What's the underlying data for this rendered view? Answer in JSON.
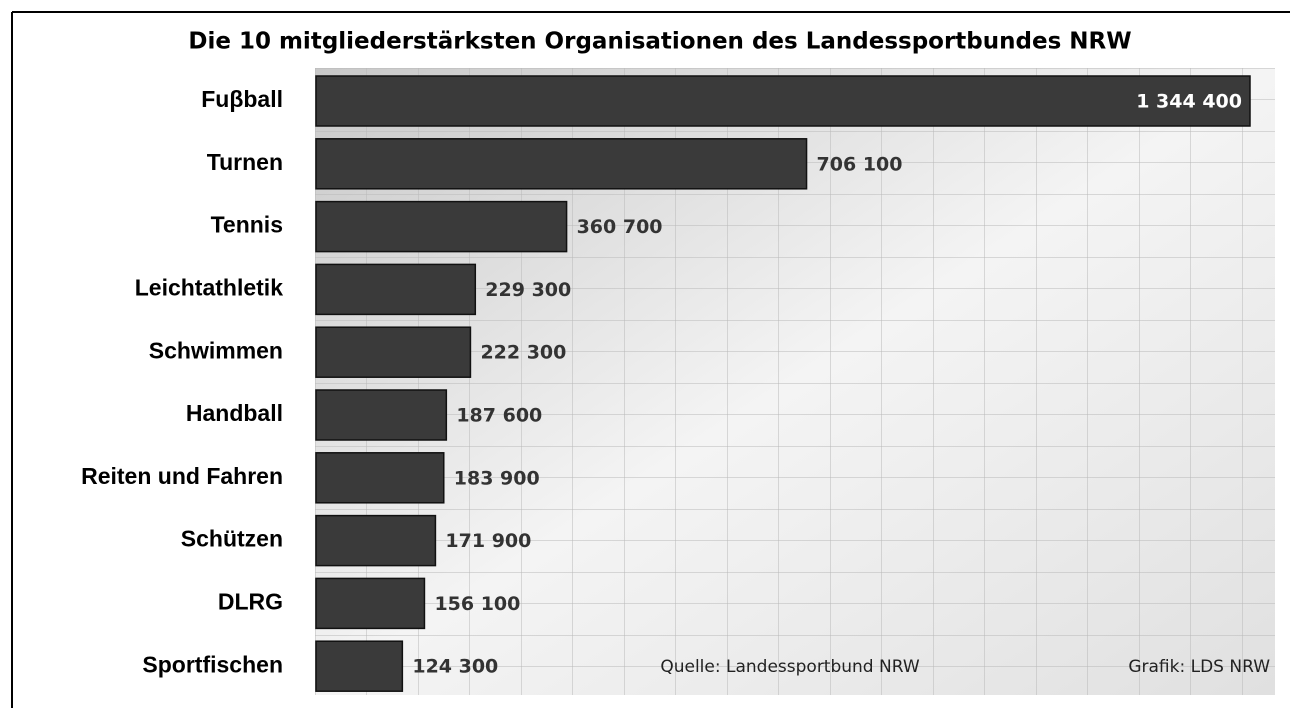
{
  "chart_data": {
    "type": "bar",
    "orientation": "horizontal",
    "title": "Die 10 mitgliederstärksten Organisationen des Landessportbundes NRW",
    "categories": [
      "Fuβball",
      "Turnen",
      "Tennis",
      "Leichtathletik",
      "Schwimmen",
      "Handball",
      "Reiten und Fahren",
      "Schützen",
      "DLRG",
      "Sportfischen"
    ],
    "values": [
      1344400,
      706100,
      360700,
      229300,
      222300,
      187600,
      183900,
      171900,
      156100,
      124300
    ],
    "value_labels": [
      "1 344 400",
      "706 100",
      "360 700",
      "229 300",
      "222 300",
      "187 600",
      "183 900",
      "171 900",
      "156 100",
      "124 300"
    ],
    "color": "#3a3a3a",
    "source": "Quelle: Landessportbund NRW",
    "credit": "Grafik: LDS NRW"
  }
}
